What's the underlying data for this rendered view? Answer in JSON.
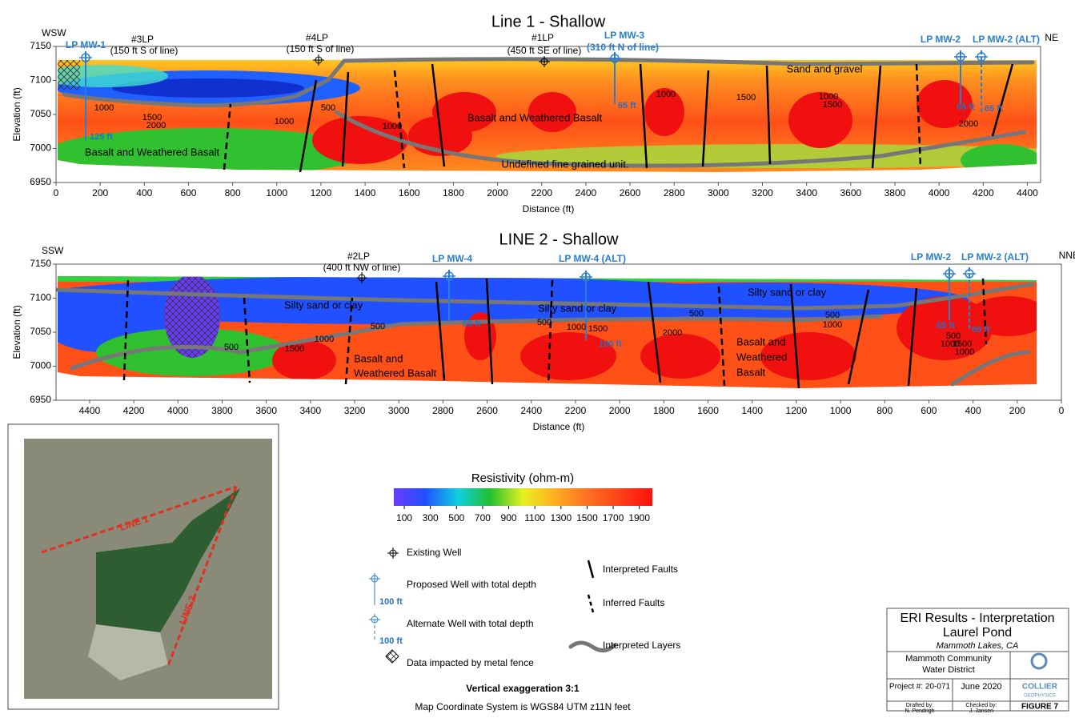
{
  "line1": {
    "title": "Line 1 - Shallow",
    "x_label": "Distance (ft)",
    "y_label": "Elevation (ft)",
    "dir_left": "WSW",
    "dir_right": "NE",
    "xlim": [
      0,
      4460
    ],
    "ylim": [
      6950,
      7150
    ],
    "xticks": [
      0,
      200,
      400,
      600,
      800,
      1000,
      1200,
      1400,
      1600,
      1800,
      2000,
      2200,
      2400,
      2600,
      2800,
      3000,
      3200,
      3400,
      3600,
      3800,
      4000,
      4200,
      4400
    ],
    "yticks": [
      6950,
      7000,
      7050,
      7100,
      7150
    ],
    "wells": [
      {
        "name": "LP MW-1",
        "depth": "125 ft"
      },
      {
        "name": "LP MW-3",
        "note": "(310 ft N of line)",
        "depth": "65 ft"
      },
      {
        "name": "LP MW-2",
        "depth": "65 ft"
      },
      {
        "name": "LP MW-2 (ALT)",
        "depth": "65 ft"
      }
    ],
    "existing": [
      {
        "name": "#3LP",
        "note": "(150 ft S of line)"
      },
      {
        "name": "#4LP",
        "note": "(150 ft S of line)"
      },
      {
        "name": "#1LP",
        "note": "(450 ft SE of line)"
      }
    ],
    "units": [
      "Basalt and Weathered Basalt",
      "Basalt and Weathered Basalt",
      "Sand and gravel",
      "Undefined fine grained unit."
    ],
    "contours": [
      "1000",
      "1500",
      "2000",
      "500",
      "1000",
      "1000",
      "1000",
      "1500",
      "1000",
      "1500",
      "2000"
    ]
  },
  "line2": {
    "title": "LINE 2 - Shallow",
    "x_label": "Distance (ft)",
    "y_label": "Elevation (ft)",
    "dir_left": "SSW",
    "dir_right": "NNE",
    "xlim": [
      4552,
      0
    ],
    "ylim": [
      6950,
      7150
    ],
    "xticks": [
      4400,
      4200,
      4000,
      3800,
      3600,
      3400,
      3200,
      3000,
      2800,
      2600,
      2400,
      2200,
      2000,
      1800,
      1600,
      1400,
      1200,
      1000,
      800,
      600,
      400,
      200,
      0
    ],
    "yticks": [
      6950,
      7000,
      7050,
      7100,
      7150
    ],
    "wells": [
      {
        "name": "LP MW-4",
        "depth": "65 ft"
      },
      {
        "name": "LP MW-4 (ALT)",
        "depth": "100 ft"
      },
      {
        "name": "LP MW-2",
        "depth": "65 ft"
      },
      {
        "name": "LP MW-2 (ALT)",
        "depth": "65 ft"
      }
    ],
    "existing": [
      {
        "name": "#2LP",
        "note": "(400 ft NW of line)"
      }
    ],
    "units": [
      [
        "Silty sand or clay"
      ],
      [
        "Silty sand or clay"
      ],
      [
        "Silty sand or clay"
      ],
      [
        "Basalt and",
        "Weathered Basalt"
      ],
      [
        "Basalt and",
        "Weathered",
        "Basalt"
      ]
    ],
    "contours": [
      "500",
      "1000",
      "1500",
      "500",
      "500",
      "1000",
      "1500",
      "500",
      "2000",
      "500",
      "1000",
      "500",
      "1000",
      "1500",
      "1000"
    ]
  },
  "colorbar": {
    "title": "Resistivity (ohm-m)",
    "lim": [
      20,
      2000
    ],
    "ticks": [
      100,
      300,
      500,
      700,
      900,
      1100,
      1300,
      1500,
      1700,
      1900
    ]
  },
  "legend": {
    "existing": "Existing Well",
    "proposed": "Proposed Well with total depth",
    "proposed_depth": "100 ft",
    "alternate": "Alternate Well with total depth",
    "alternate_depth": "100 ft",
    "fence": "Data impacted by metal fence",
    "faults": "Interpreted Faults",
    "inferred": "Inferred Faults",
    "layers": "Interpreted Layers",
    "exaggeration": "Vertical exaggeration 3:1",
    "coords": "Map Coordinate System is WGS84 UTM z11N feet"
  },
  "map": {
    "line1": "LINE 1",
    "line2": "LINE 2"
  },
  "title_block": {
    "title": "ERI Results - Interpretation",
    "site": "Laurel Pond",
    "place": "Mammoth Lakes, CA",
    "client": [
      "Mammoth Community",
      "Water District"
    ],
    "project": "Project #: 20-071",
    "date": "June 2020",
    "company": "COLLIER",
    "company_sub": "GEOPHYSICS",
    "drafted": [
      "Drafted by:",
      "N. Pendrigh"
    ],
    "checked": [
      "Checked by:",
      "J. Jansen"
    ],
    "figure": "FIGURE 7"
  }
}
